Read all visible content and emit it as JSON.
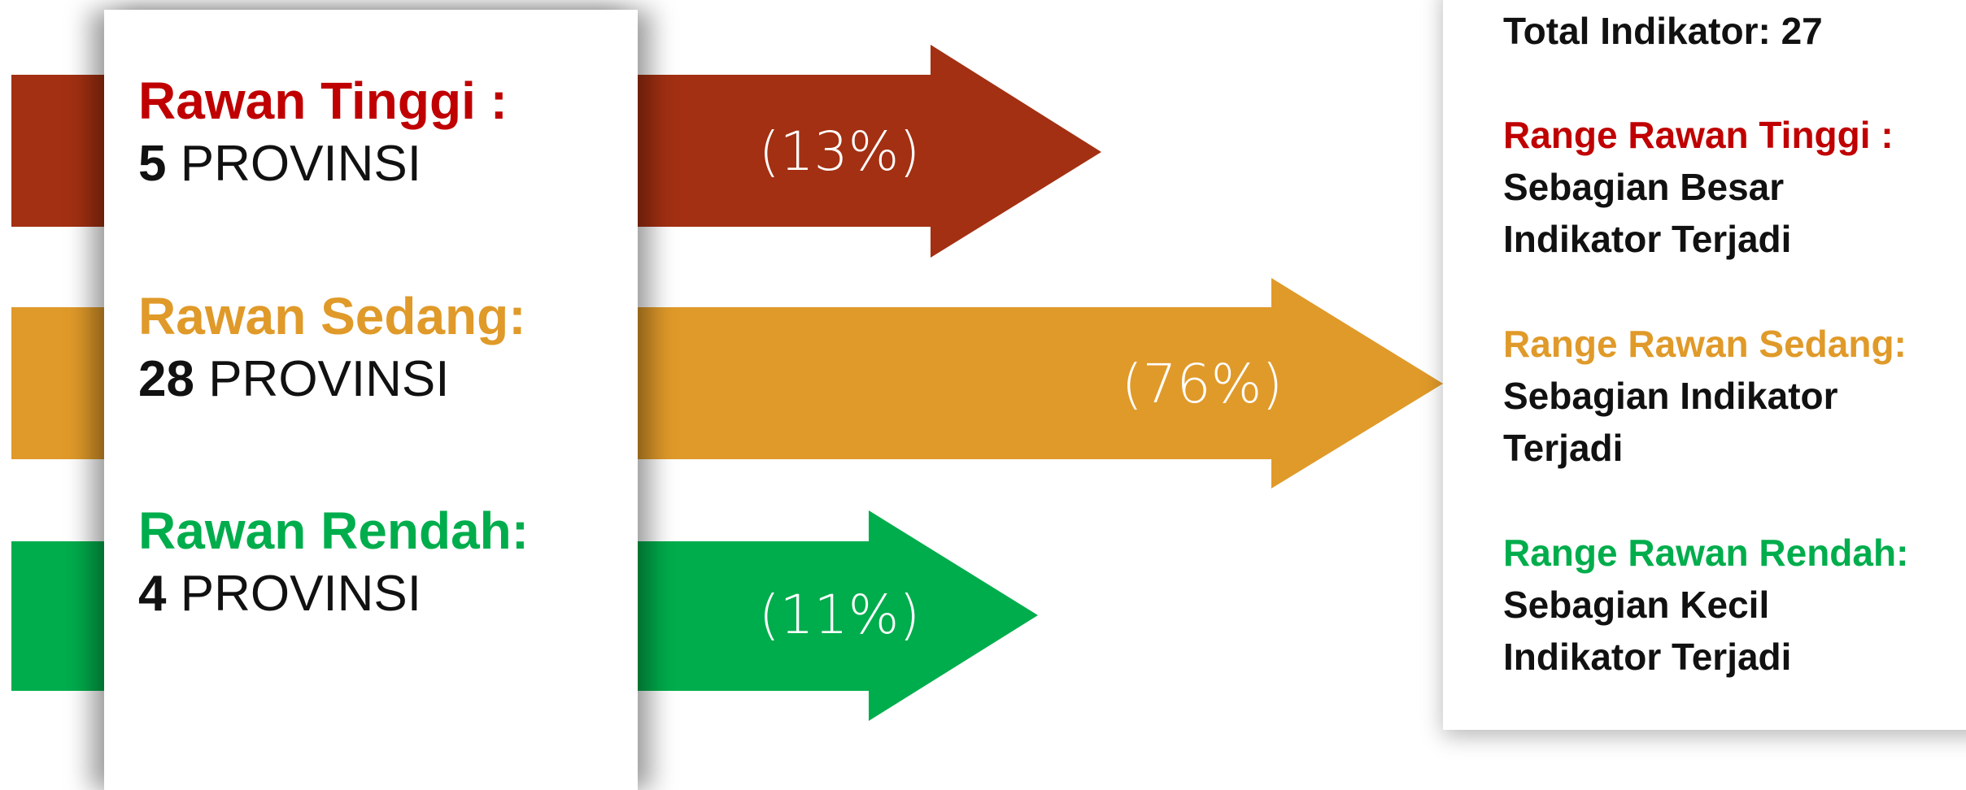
{
  "colors": {
    "tinggi": "#A33012",
    "sedang": "#E09A29",
    "rendah": "#00AD4C",
    "tinggi_text": "#C00000",
    "sedang_text": "#E09A29",
    "rendah_text": "#00AD4C"
  },
  "categories": [
    {
      "name": "Rawan Tinggi :",
      "count": "5",
      "unit": "PROVINSI",
      "percent_label": "(13%)",
      "percent": 13
    },
    {
      "name": "Rawan Sedang:",
      "count": "28",
      "unit": "PROVINSI",
      "percent_label": "(76%)",
      "percent": 76
    },
    {
      "name": "Rawan Rendah:",
      "count": "4",
      "unit": "PROVINSI",
      "percent_label": "(11%)",
      "percent": 11
    }
  ],
  "summary": {
    "total": "Total Indikator: 27",
    "ranges": [
      {
        "label": "Range Rawan Tinggi :",
        "desc": "Sebagian Besar Indikator Terjadi"
      },
      {
        "label": "Range Rawan Sedang:",
        "desc": "Sebagian Indikator Terjadi"
      },
      {
        "label": "Range Rawan Rendah:",
        "desc": "Sebagian Kecil Indikator Terjadi"
      }
    ]
  }
}
